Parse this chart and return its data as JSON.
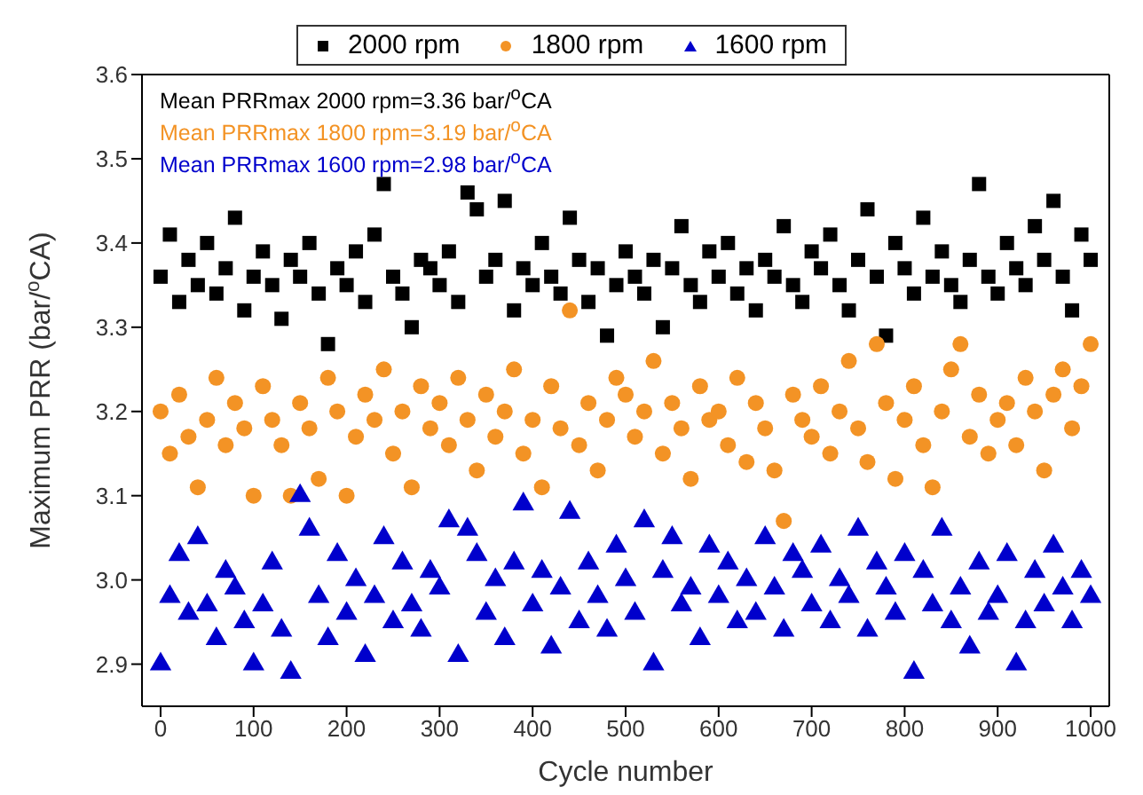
{
  "chart_data": {
    "type": "scatter",
    "xlabel": "Cycle number",
    "ylabel": "Maximum PRR (bar/$^{o}$CA)",
    "xlim": [
      -20,
      1020
    ],
    "xticks": [
      0,
      100,
      200,
      300,
      400,
      500,
      600,
      700,
      800,
      900,
      1000
    ],
    "ylim": [
      2.85,
      3.6
    ],
    "yticks": [
      2.9,
      {
        "value": 3,
        "label": "3.0"
      },
      3.1,
      3.2,
      3.3,
      3.4,
      3.5,
      3.6
    ],
    "grid": false,
    "legend": "top",
    "annotations": [
      "Mean PRRmax 2000 rpm=3.36 bar/$^{o}$CA",
      "Mean PRRmax 1800 rpm=3.19 bar/$^{o}$CA",
      "Mean PRRmax 1600 rpm=2.98 bar/$^{o}$CA"
    ],
    "x": [
      0,
      10,
      20,
      30,
      40,
      50,
      60,
      70,
      80,
      90,
      100,
      110,
      120,
      130,
      140,
      150,
      160,
      170,
      180,
      190,
      200,
      210,
      220,
      230,
      240,
      250,
      260,
      270,
      280,
      290,
      300,
      310,
      320,
      330,
      340,
      350,
      360,
      370,
      380,
      390,
      400,
      410,
      420,
      430,
      440,
      450,
      460,
      470,
      480,
      490,
      500,
      510,
      520,
      530,
      540,
      550,
      560,
      570,
      580,
      590,
      600,
      610,
      620,
      630,
      640,
      650,
      660,
      670,
      680,
      690,
      700,
      710,
      720,
      730,
      740,
      750,
      760,
      770,
      780,
      790,
      800,
      810,
      820,
      830,
      840,
      850,
      860,
      870,
      880,
      890,
      900,
      910,
      920,
      930,
      940,
      950,
      960,
      970,
      980,
      990,
      1000
    ],
    "series": [
      {
        "name": "2000 rpm",
        "color": "#000000",
        "marker": "square",
        "values": [
          3.36,
          3.41,
          3.33,
          3.38,
          3.35,
          3.4,
          3.34,
          3.37,
          3.43,
          3.32,
          3.36,
          3.39,
          3.35,
          3.31,
          3.38,
          3.36,
          3.4,
          3.34,
          3.28,
          3.37,
          3.35,
          3.39,
          3.33,
          3.41,
          3.47,
          3.36,
          3.34,
          3.3,
          3.38,
          3.37,
          3.35,
          3.39,
          3.33,
          3.46,
          3.44,
          3.36,
          3.38,
          3.45,
          3.32,
          3.37,
          3.35,
          3.4,
          3.36,
          3.34,
          3.43,
          3.38,
          3.33,
          3.37,
          3.29,
          3.35,
          3.39,
          3.36,
          3.34,
          3.38,
          3.3,
          3.37,
          3.42,
          3.35,
          3.33,
          3.39,
          3.36,
          3.4,
          3.34,
          3.37,
          3.32,
          3.38,
          3.36,
          3.42,
          3.35,
          3.33,
          3.39,
          3.37,
          3.41,
          3.35,
          3.32,
          3.38,
          3.44,
          3.36,
          3.29,
          3.4,
          3.37,
          3.34,
          3.43,
          3.36,
          3.39,
          3.35,
          3.33,
          3.38,
          3.47,
          3.36,
          3.34,
          3.4,
          3.37,
          3.35,
          3.42,
          3.38,
          3.45,
          3.36,
          3.32,
          3.41,
          3.38
        ]
      },
      {
        "name": "1800 rpm",
        "color": "#f39325",
        "marker": "circle",
        "values": [
          3.2,
          3.15,
          3.22,
          3.17,
          3.11,
          3.19,
          3.24,
          3.16,
          3.21,
          3.18,
          3.1,
          3.23,
          3.19,
          3.16,
          3.1,
          3.21,
          3.18,
          3.12,
          3.24,
          3.2,
          3.1,
          3.17,
          3.22,
          3.19,
          3.25,
          3.15,
          3.2,
          3.11,
          3.23,
          3.18,
          3.21,
          3.16,
          3.24,
          3.19,
          3.13,
          3.22,
          3.17,
          3.2,
          3.25,
          3.15,
          3.19,
          3.11,
          3.23,
          3.18,
          3.32,
          3.16,
          3.21,
          3.13,
          3.19,
          3.24,
          3.22,
          3.17,
          3.2,
          3.26,
          3.15,
          3.21,
          3.18,
          3.12,
          3.23,
          3.19,
          3.2,
          3.16,
          3.24,
          3.14,
          3.21,
          3.18,
          3.13,
          3.07,
          3.22,
          3.19,
          3.17,
          3.23,
          3.15,
          3.2,
          3.26,
          3.18,
          3.14,
          3.28,
          3.21,
          3.12,
          3.19,
          3.23,
          3.16,
          3.11,
          3.2,
          3.25,
          3.28,
          3.17,
          3.22,
          3.15,
          3.19,
          3.21,
          3.16,
          3.24,
          3.2,
          3.13,
          3.22,
          3.25,
          3.18,
          3.23,
          3.28
        ]
      },
      {
        "name": "1600 rpm",
        "color": "#0000cc",
        "marker": "triangle",
        "values": [
          2.9,
          2.98,
          3.03,
          2.96,
          3.05,
          2.97,
          2.93,
          3.01,
          2.99,
          2.95,
          2.9,
          2.97,
          3.02,
          2.94,
          2.89,
          3.1,
          3.06,
          2.98,
          2.93,
          3.03,
          2.96,
          3.0,
          2.91,
          2.98,
          3.05,
          2.95,
          3.02,
          2.97,
          2.94,
          3.01,
          2.99,
          3.07,
          2.91,
          3.06,
          3.03,
          2.96,
          3.0,
          2.93,
          3.02,
          3.09,
          2.97,
          3.01,
          2.92,
          2.99,
          3.08,
          2.95,
          3.02,
          2.98,
          2.94,
          3.04,
          3.0,
          2.96,
          3.07,
          2.9,
          3.01,
          3.05,
          2.97,
          2.99,
          2.93,
          3.04,
          2.98,
          3.02,
          2.95,
          3.0,
          2.96,
          3.05,
          2.99,
          2.94,
          3.03,
          3.01,
          2.97,
          3.04,
          2.95,
          3.0,
          2.98,
          3.06,
          2.94,
          3.02,
          2.99,
          2.96,
          3.03,
          2.89,
          3.01,
          2.97,
          3.06,
          2.95,
          2.99,
          2.92,
          3.02,
          2.96,
          2.98,
          3.03,
          2.9,
          2.95,
          3.01,
          2.97,
          3.04,
          2.99,
          2.95,
          3.01,
          2.98
        ]
      }
    ]
  }
}
